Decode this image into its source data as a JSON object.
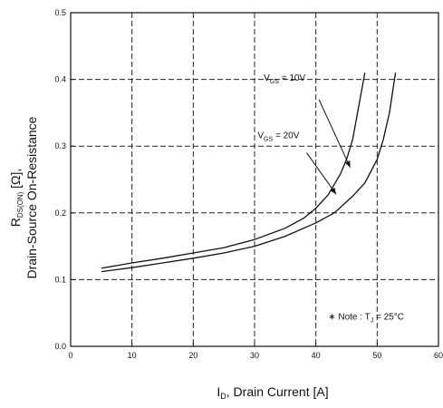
{
  "chart_data": {
    "type": "line",
    "xlabel": {
      "main": "I",
      "sub": "D",
      "rest": ", Drain Current [A]"
    },
    "ylabel": {
      "line1_main": "R",
      "line1_sub": "DS(ON)",
      "line1_rest": " [Ω],",
      "line2": "Drain-Source On-Resistance"
    },
    "xlim": [
      0,
      60
    ],
    "ylim": [
      0.0,
      0.5
    ],
    "xticks": [
      0,
      10,
      20,
      30,
      40,
      50,
      60
    ],
    "xtick_labels": [
      "0",
      "10",
      "20",
      "30",
      "40",
      "50",
      "60"
    ],
    "yticks": [
      0.0,
      0.1,
      0.2,
      0.3,
      0.4,
      0.5
    ],
    "ytick_labels": [
      "0.0",
      "0.1",
      "0.2",
      "0.3",
      "0.4",
      "0.5"
    ],
    "grid": true,
    "series": [
      {
        "name_main": "V",
        "name_sub": "GS",
        "name_rest": " = 10V",
        "x": [
          5,
          10,
          15,
          20,
          25,
          30,
          35,
          38,
          40,
          42,
          44,
          45,
          46,
          47,
          48
        ],
        "y": [
          0.117,
          0.125,
          0.132,
          0.14,
          0.148,
          0.16,
          0.177,
          0.192,
          0.207,
          0.227,
          0.258,
          0.28,
          0.31,
          0.36,
          0.41
        ]
      },
      {
        "name_main": "V",
        "name_sub": "GS",
        "name_rest": " = 20V",
        "x": [
          5,
          10,
          15,
          20,
          25,
          30,
          35,
          40,
          43,
          46,
          48,
          50,
          51,
          52,
          53
        ],
        "y": [
          0.112,
          0.118,
          0.125,
          0.132,
          0.14,
          0.15,
          0.165,
          0.185,
          0.2,
          0.225,
          0.245,
          0.28,
          0.31,
          0.35,
          0.41
        ]
      }
    ],
    "note": {
      "main": "∗ Note : T",
      "sub": "J",
      "rest": " = 25°C"
    }
  }
}
